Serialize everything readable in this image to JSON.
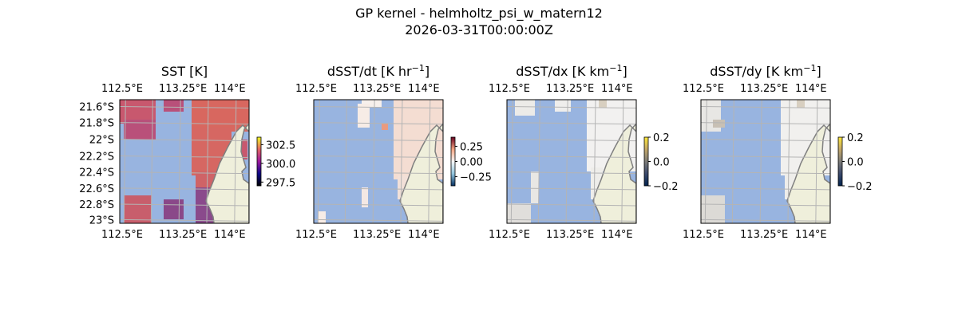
{
  "figure": {
    "title_line1": "GP kernel - helmholtz_psi_w_matern12",
    "title_line2": "2026-03-31T00:00:00Z"
  },
  "colors": {
    "ocean": "#98b4e0",
    "land": "#efefdb",
    "grid": "#b4b4b4",
    "coast": "#7f7f7f"
  },
  "chart_data": [
    {
      "type": "heatmap",
      "title": "SST [K]",
      "title_sup": "",
      "colormap": "plasma-like",
      "clim": [
        297,
        303.5
      ],
      "colorbar_ticks": [
        "302.5",
        "300.0",
        "297.5"
      ],
      "colorbar_tick_values": [
        302.5,
        300.0,
        297.5
      ],
      "xticks": [
        "112.5°E",
        "113.25°E",
        "114°E"
      ],
      "yticks": [
        "21.6°S",
        "21.8°S",
        "22°S",
        "22.2°S",
        "22.4°S",
        "22.6°S",
        "22.8°S",
        "23°S"
      ],
      "show_yticks": true
    },
    {
      "type": "heatmap",
      "title": "dSST/dt [K hr",
      "title_sup": "−1",
      "title_end": "]",
      "colormap": "RdBu_r",
      "clim": [
        -0.4,
        0.4
      ],
      "colorbar_ticks": [
        "0.25",
        "0.00",
        "−0.25"
      ],
      "colorbar_tick_values": [
        0.25,
        0,
        -0.25
      ],
      "xticks": [
        "112.5°E",
        "113.25°E",
        "114°E"
      ],
      "yticks": [],
      "show_yticks": false
    },
    {
      "type": "heatmap",
      "title": "dSST/dx [K km",
      "title_sup": "−1",
      "title_end": "]",
      "colormap": "cividis-like",
      "clim": [
        -0.2,
        0.2
      ],
      "colorbar_ticks": [
        "0.2",
        "0.0",
        "−0.2"
      ],
      "colorbar_tick_values": [
        0.2,
        0,
        -0.2
      ],
      "xticks": [
        "112.5°E",
        "113.25°E",
        "114°E"
      ],
      "yticks": [],
      "show_yticks": false
    },
    {
      "type": "heatmap",
      "title": "dSST/dy [K km",
      "title_sup": "−1",
      "title_end": "]",
      "colormap": "cividis-like",
      "clim": [
        -0.2,
        0.2
      ],
      "colorbar_ticks": [
        "0.2",
        "0.0",
        "−0.2"
      ],
      "colorbar_tick_values": [
        0.2,
        0,
        -0.2
      ],
      "xticks": [
        "112.5°E",
        "113.25°E",
        "114°E"
      ],
      "yticks": [],
      "show_yticks": false
    }
  ]
}
